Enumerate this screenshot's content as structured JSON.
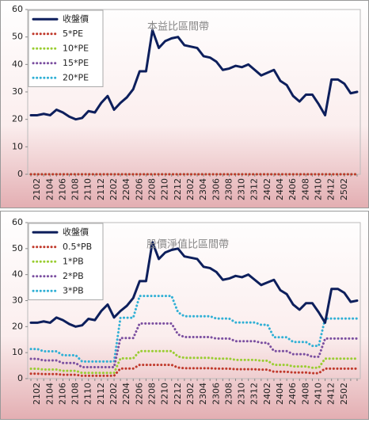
{
  "chart_data": [
    {
      "type": "line",
      "title": "本益比區間帶",
      "categories": [
        null,
        "2102",
        null,
        "2104",
        null,
        "2106",
        null,
        "2108",
        null,
        "2110",
        null,
        "2112",
        null,
        "2202",
        null,
        "2204",
        null,
        "2206",
        null,
        "2208",
        null,
        "2210",
        null,
        "2212",
        null,
        "2302",
        null,
        "2304",
        null,
        "2306",
        null,
        "2308",
        null,
        "2310",
        null,
        "2312",
        null,
        "2402",
        null,
        "2404",
        null,
        "2406",
        null,
        "2408",
        null,
        "2410",
        null,
        "2412",
        null,
        "2502",
        null,
        null
      ],
      "series": [
        {
          "name": "收盤價",
          "color": "#0d1f5c",
          "values": [
            21.5,
            21.5,
            22,
            21.5,
            23.5,
            22.5,
            21,
            20,
            20.5,
            23,
            22.5,
            26,
            28.5,
            23.5,
            26,
            28,
            31,
            37.5,
            37.5,
            52.5,
            46,
            48.5,
            49.5,
            50,
            47,
            46.5,
            46,
            43,
            42.5,
            41,
            38,
            38.5,
            39.5,
            39,
            40,
            38,
            36,
            37,
            38,
            34,
            32.5,
            28.5,
            26.5,
            29,
            29,
            25.5,
            21.5,
            34.5,
            34.5,
            33,
            29.5,
            30
          ]
        },
        {
          "name": "5*PE",
          "color": "#c0392b",
          "values": [
            0,
            0,
            0,
            0,
            0,
            0,
            0,
            0,
            0,
            0,
            0,
            0,
            0,
            0,
            0,
            0,
            0,
            0,
            0,
            0,
            0,
            0,
            0,
            0,
            0,
            0,
            0,
            0,
            0,
            0,
            0,
            0,
            0,
            0,
            0,
            0,
            0,
            0,
            0,
            0,
            0,
            0,
            0,
            0,
            0,
            0,
            0,
            0,
            0,
            0,
            0,
            0
          ]
        },
        {
          "name": "10*PE",
          "color": "#9acd32",
          "values": [
            0,
            0,
            0,
            0,
            0,
            0,
            0,
            0,
            0,
            0,
            0,
            0,
            0,
            0,
            0,
            0,
            0,
            0,
            0,
            0,
            0,
            0,
            0,
            0,
            0,
            0,
            0,
            0,
            0,
            0,
            0,
            0,
            0,
            0,
            0,
            0,
            0,
            0,
            0,
            0,
            0,
            0,
            0,
            0,
            0,
            0,
            0,
            0,
            0,
            0,
            0,
            0
          ]
        },
        {
          "name": "15*PE",
          "color": "#7b4fa0",
          "values": [
            0,
            0,
            0,
            0,
            0,
            0,
            0,
            0,
            0,
            0,
            0,
            0,
            0,
            0,
            0,
            0,
            0,
            0,
            0,
            0,
            0,
            0,
            0,
            0,
            0,
            0,
            0,
            0,
            0,
            0,
            0,
            0,
            0,
            0,
            0,
            0,
            0,
            0,
            0,
            0,
            0,
            0,
            0,
            0,
            0,
            0,
            0,
            0,
            0,
            0,
            0,
            0
          ]
        },
        {
          "name": "20*PE",
          "color": "#31b0d5",
          "values": [
            0,
            0,
            0,
            0,
            0,
            0,
            0,
            0,
            0,
            0,
            0,
            0,
            0,
            0,
            0,
            0,
            0,
            0,
            0,
            0,
            0,
            0,
            0,
            0,
            0,
            0,
            0,
            0,
            0,
            0,
            0,
            0,
            0,
            0,
            0,
            0,
            0,
            0,
            0,
            0,
            0,
            0,
            0,
            0,
            0,
            0,
            0,
            0,
            0,
            0,
            0,
            0
          ]
        }
      ],
      "ylim": [
        0,
        60
      ],
      "yticks": [
        0,
        10,
        20,
        30,
        40,
        50,
        60
      ],
      "legend": "upper left"
    },
    {
      "type": "line",
      "title": "股價淨值比區間帶",
      "categories": [
        null,
        "2102",
        null,
        "2104",
        null,
        "2106",
        null,
        "2108",
        null,
        "2110",
        null,
        "2112",
        null,
        "2202",
        null,
        "2204",
        null,
        "2206",
        null,
        "2208",
        null,
        "2210",
        null,
        "2212",
        null,
        "2302",
        null,
        "2304",
        null,
        "2306",
        null,
        "2308",
        null,
        "2310",
        null,
        "2312",
        null,
        "2402",
        null,
        "2404",
        null,
        "2406",
        null,
        "2408",
        null,
        "2410",
        null,
        "2412",
        null,
        "2502",
        null,
        null
      ],
      "series": [
        {
          "name": "收盤價",
          "color": "#0d1f5c",
          "values": [
            21.5,
            21.5,
            22,
            21.5,
            23.5,
            22.5,
            21,
            20,
            20.5,
            23,
            22.5,
            26,
            28.5,
            23.5,
            26,
            28,
            31,
            37.5,
            37.5,
            52.5,
            46,
            48.5,
            49.5,
            50,
            47,
            46.5,
            46,
            43,
            42.5,
            41,
            38,
            38.5,
            39.5,
            39,
            40,
            38,
            36,
            37,
            38,
            34,
            32.5,
            28.5,
            26.5,
            29,
            29,
            25.5,
            21.5,
            34.5,
            34.5,
            33,
            29.5,
            30
          ]
        },
        {
          "name": "0.5*PB",
          "color": "#c0392b",
          "values": [
            1.9,
            1.9,
            1.75,
            1.75,
            1.75,
            1.5,
            1.5,
            1.5,
            1.1,
            1.1,
            1.1,
            1.1,
            1.1,
            1.1,
            3.9,
            3.9,
            3.9,
            5.3,
            5.3,
            5.3,
            5.3,
            5.3,
            5.3,
            4.25,
            4,
            4,
            4,
            4,
            4,
            3.85,
            3.85,
            3.85,
            3.6,
            3.6,
            3.6,
            3.6,
            3.45,
            3.45,
            2.65,
            2.65,
            2.65,
            2.35,
            2.35,
            2.35,
            2.1,
            2.1,
            3.85,
            3.85,
            3.85,
            3.85,
            3.85,
            3.85
          ]
        },
        {
          "name": "1*PB",
          "color": "#9acd32",
          "values": [
            3.8,
            3.8,
            3.5,
            3.5,
            3.5,
            3,
            3,
            3,
            2.2,
            2.2,
            2.2,
            2.2,
            2.2,
            2.2,
            7.8,
            7.8,
            7.8,
            10.6,
            10.6,
            10.6,
            10.6,
            10.6,
            10.6,
            8.5,
            8,
            8,
            8,
            8,
            8,
            7.7,
            7.7,
            7.7,
            7.2,
            7.2,
            7.2,
            7.2,
            6.9,
            6.9,
            5.3,
            5.3,
            5.3,
            4.7,
            4.7,
            4.7,
            4.2,
            4.2,
            7.7,
            7.7,
            7.7,
            7.7,
            7.7,
            7.7
          ]
        },
        {
          "name": "2*PB",
          "color": "#7b4fa0",
          "values": [
            7.6,
            7.6,
            7,
            7,
            7,
            6,
            6,
            6,
            4.4,
            4.4,
            4.4,
            4.4,
            4.4,
            4.4,
            15.6,
            15.6,
            15.6,
            21.2,
            21.2,
            21.2,
            21.2,
            21.2,
            21.2,
            17,
            16,
            16,
            16,
            16,
            16,
            15.4,
            15.4,
            15.4,
            14.4,
            14.4,
            14.4,
            14.4,
            13.8,
            13.8,
            10.6,
            10.6,
            10.6,
            9.4,
            9.4,
            9.4,
            8.4,
            8.4,
            15.4,
            15.4,
            15.4,
            15.4,
            15.4,
            15.4
          ]
        },
        {
          "name": "3*PB",
          "color": "#31b0d5",
          "values": [
            11.4,
            11.4,
            10.5,
            10.5,
            10.5,
            9,
            9,
            9,
            6.6,
            6.6,
            6.6,
            6.6,
            6.6,
            6.6,
            23.4,
            23.4,
            23.4,
            31.8,
            31.8,
            31.8,
            31.8,
            31.8,
            31.8,
            25.5,
            24,
            24,
            24,
            24,
            24,
            23.1,
            23.1,
            23.1,
            21.6,
            21.6,
            21.6,
            21.6,
            20.7,
            20.7,
            15.9,
            15.9,
            15.9,
            14.1,
            14.1,
            14.1,
            12.6,
            12.6,
            23.1,
            23.1,
            23.1,
            23.1,
            23.1,
            23.1
          ]
        }
      ],
      "ylim": [
        0,
        60
      ],
      "yticks": [
        0,
        10,
        20,
        30,
        40,
        50,
        60
      ],
      "legend": "upper left"
    }
  ]
}
